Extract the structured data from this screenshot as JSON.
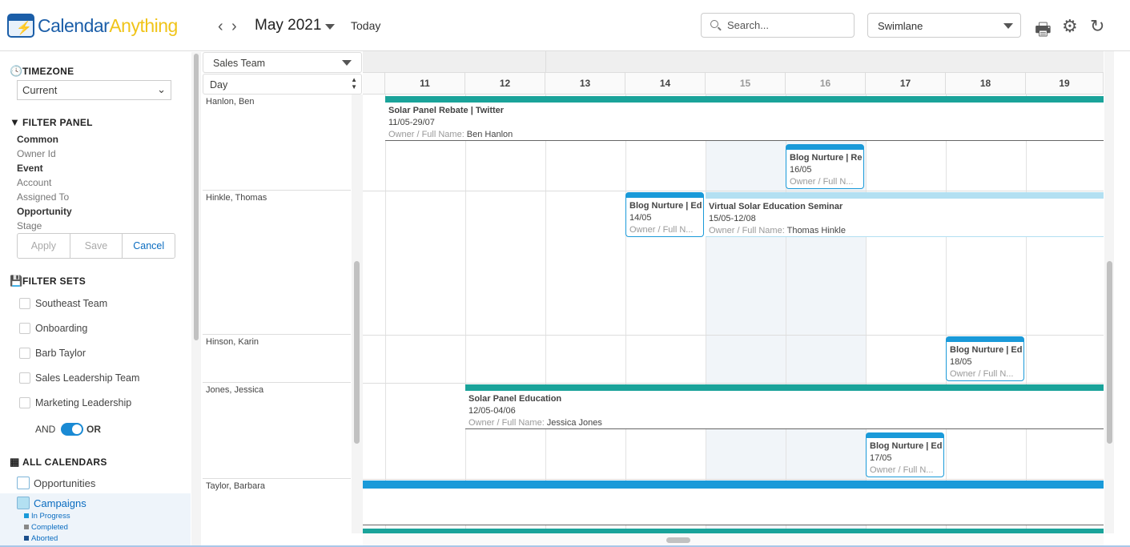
{
  "header": {
    "logo_a": "Calendar",
    "logo_b": "Anything",
    "month": "May 2021",
    "today": "Today",
    "search_placeholder": "Search...",
    "view": "Swimlane"
  },
  "sidebar": {
    "timezone_title": "TIMEZONE",
    "timezone_value": "Current",
    "filter_title": "FILTER PANEL",
    "filters": [
      {
        "label": "Common",
        "bold": true
      },
      {
        "label": "Owner Id"
      },
      {
        "label": "Event",
        "bold": true
      },
      {
        "label": "Account"
      },
      {
        "label": "Assigned To"
      },
      {
        "label": "Opportunity",
        "bold": true
      },
      {
        "label": "Stage"
      }
    ],
    "apply": "Apply",
    "save": "Save",
    "cancel": "Cancel",
    "filter_sets_title": "FILTER SETS",
    "filter_sets": [
      "Southeast Team",
      "Onboarding",
      "Barb Taylor",
      "Sales Leadership Team",
      "Marketing Leadership"
    ],
    "and": "AND",
    "or": "OR",
    "calendars_title": "ALL CALENDARS",
    "calendars": [
      "Opportunities",
      "Campaigns"
    ],
    "statuses": [
      {
        "label": "In Progress",
        "color": "#1a9ad9"
      },
      {
        "label": "Completed",
        "color": "#888888"
      },
      {
        "label": "Aborted",
        "color": "#1b4f8c"
      }
    ]
  },
  "grid": {
    "group": "Sales Team",
    "scale": "Day",
    "days": [
      "11",
      "12",
      "13",
      "14",
      "15",
      "16",
      "17",
      "18",
      "19"
    ],
    "lanes": [
      "Hanlon, Ben",
      "Hinkle, Thomas",
      "Hinson, Karin",
      "Jones, Jessica",
      "Taylor, Barbara"
    ],
    "events": [
      {
        "title": "Solar Panel Rebate | Twitter",
        "dates": "11/05-29/07",
        "owner_label": "Owner / Full Name:",
        "owner": " Ben Hanlon"
      },
      {
        "title": "Blog Nurture | Re",
        "dates": "16/05",
        "owner_label": "Owner / Full N..."
      },
      {
        "title": "Blog Nurture | Ed",
        "dates": "14/05",
        "owner_label": "Owner / Full N..."
      },
      {
        "title": "Virtual Solar Education Seminar",
        "dates": "15/05-12/08",
        "owner_label": "Owner / Full Name:",
        "owner": " Thomas Hinkle"
      },
      {
        "title": "Blog Nurture | Ed",
        "dates": "18/05",
        "owner_label": "Owner / Full N..."
      },
      {
        "title": "Solar Panel Education",
        "dates": "12/05-04/06",
        "owner_label": "Owner / Full Name:",
        "owner": " Jessica Jones"
      },
      {
        "title": "Blog Nurture | Ed",
        "dates": "17/05",
        "owner_label": "Owner / Full N..."
      }
    ]
  },
  "colors": {
    "teal": "#1aa39a",
    "blue": "#1a9ad9",
    "light_blue": "#b3e0f2",
    "weekend": "#f1f5f9"
  }
}
